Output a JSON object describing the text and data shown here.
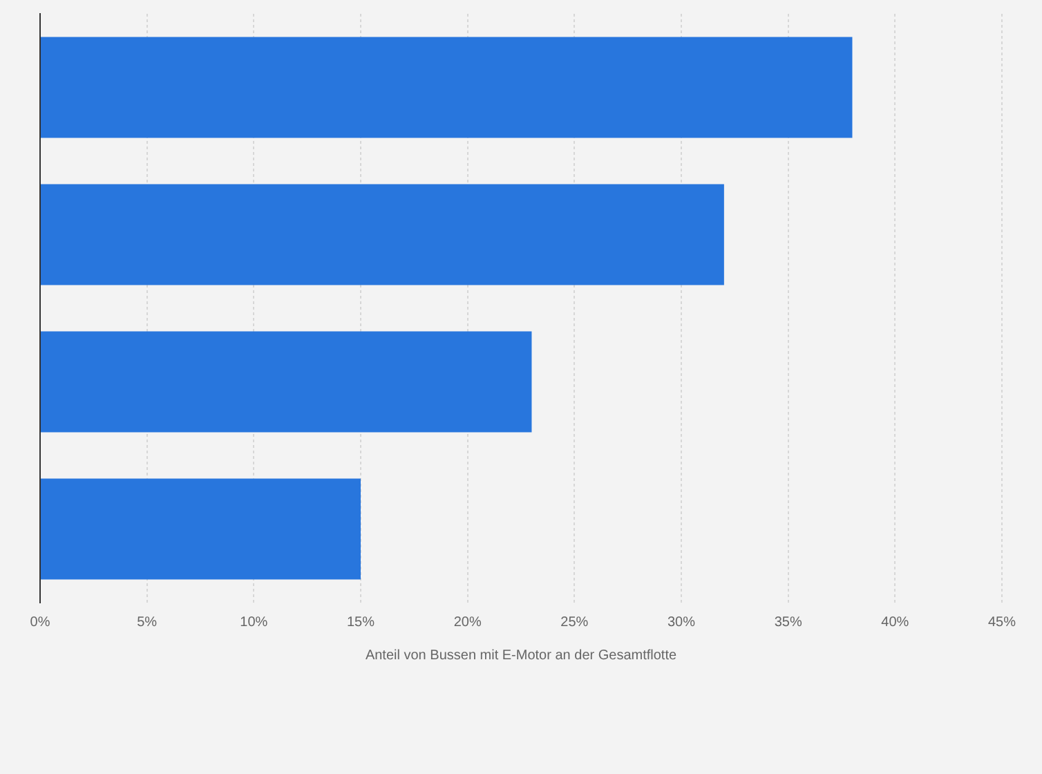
{
  "chart_data": {
    "type": "bar",
    "orientation": "horizontal",
    "categories": [
      null,
      null,
      null,
      null
    ],
    "values": [
      38,
      32,
      23,
      15
    ],
    "color": "#2876dd",
    "xlabel": "Anteil von Bussen mit E-Motor an der Gesamtflotte",
    "xlim": [
      0,
      45
    ],
    "xticks": [
      {
        "value": 0,
        "label": "0%"
      },
      {
        "value": 5,
        "label": "5%"
      },
      {
        "value": 10,
        "label": "10%"
      },
      {
        "value": 15,
        "label": "15%"
      },
      {
        "value": 20,
        "label": "20%"
      },
      {
        "value": 25,
        "label": "25%"
      },
      {
        "value": 30,
        "label": "30%"
      },
      {
        "value": 35,
        "label": "35%"
      },
      {
        "value": 40,
        "label": "40%"
      },
      {
        "value": 45,
        "label": "45%"
      }
    ],
    "grid": "x",
    "tick_labels": "x"
  }
}
